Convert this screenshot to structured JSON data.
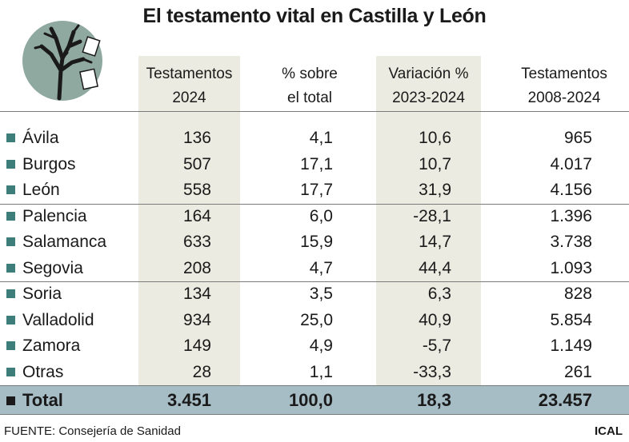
{
  "title": "El testamento vital en Castilla y León",
  "columns": [
    {
      "line1": "Testamentos",
      "line2": "2024"
    },
    {
      "line1": "% sobre",
      "line2": "el total"
    },
    {
      "line1": "Variación %",
      "line2": "2023-2024"
    },
    {
      "line1": "Testamentos",
      "line2": "2008-2024"
    }
  ],
  "rows": [
    {
      "name": "Ávila",
      "t2024": "136",
      "pct": "4,1",
      "var": "10,6",
      "total": "965"
    },
    {
      "name": "Burgos",
      "t2024": "507",
      "pct": "17,1",
      "var": "10,7",
      "total": "4.017"
    },
    {
      "name": "León",
      "t2024": "558",
      "pct": "17,7",
      "var": "31,9",
      "total": "4.156"
    },
    {
      "name": "Palencia",
      "t2024": "164",
      "pct": "6,0",
      "var": "-28,1",
      "total": "1.396"
    },
    {
      "name": "Salamanca",
      "t2024": "633",
      "pct": "15,9",
      "var": "14,7",
      "total": "3.738"
    },
    {
      "name": "Segovia",
      "t2024": "208",
      "pct": "4,7",
      "var": "44,4",
      "total": "1.093"
    },
    {
      "name": "Soria",
      "t2024": "134",
      "pct": "3,5",
      "var": "6,3",
      "total": "828"
    },
    {
      "name": "Valladolid",
      "t2024": "934",
      "pct": "25,0",
      "var": "40,9",
      "total": "5.854"
    },
    {
      "name": "Zamora",
      "t2024": "149",
      "pct": "4,9",
      "var": "-5,7",
      "total": "1.149"
    },
    {
      "name": "Otras",
      "t2024": "28",
      "pct": "1,1",
      "var": "-33,3",
      "total": "261"
    }
  ],
  "total": {
    "name": "Total",
    "t2024": "3.451",
    "pct": "100,0",
    "var": "18,3",
    "total": "23.457"
  },
  "footer": {
    "source_label": "FUENTE:",
    "source": "Consejería de Sanidad",
    "credit": "ICAL"
  },
  "colors": {
    "bullet": "#3e7e7a",
    "total_bg": "#a6bdc5",
    "column_shade": "#ebebe1",
    "icon_circle": "#8fa9a0"
  },
  "icon": "tree-with-documents-icon",
  "chart_data": {
    "type": "table",
    "title": "El testamento vital en Castilla y León",
    "columns": [
      "Testamentos 2024",
      "% sobre el total",
      "Variación % 2023-2024",
      "Testamentos 2008-2024"
    ],
    "categories": [
      "Ávila",
      "Burgos",
      "León",
      "Palencia",
      "Salamanca",
      "Segovia",
      "Soria",
      "Valladolid",
      "Zamora",
      "Otras",
      "Total"
    ],
    "series": [
      {
        "name": "Testamentos 2024",
        "values": [
          136,
          507,
          558,
          164,
          633,
          208,
          134,
          934,
          149,
          28,
          3451
        ]
      },
      {
        "name": "% sobre el total",
        "values": [
          4.1,
          17.1,
          17.7,
          6.0,
          15.9,
          4.7,
          3.5,
          25.0,
          4.9,
          1.1,
          100.0
        ]
      },
      {
        "name": "Variación % 2023-2024",
        "values": [
          10.6,
          10.7,
          31.9,
          -28.1,
          14.7,
          44.4,
          6.3,
          40.9,
          -5.7,
          -33.3,
          18.3
        ]
      },
      {
        "name": "Testamentos 2008-2024",
        "values": [
          965,
          4017,
          4156,
          1396,
          3738,
          1093,
          828,
          5854,
          1149,
          261,
          23457
        ]
      }
    ]
  }
}
